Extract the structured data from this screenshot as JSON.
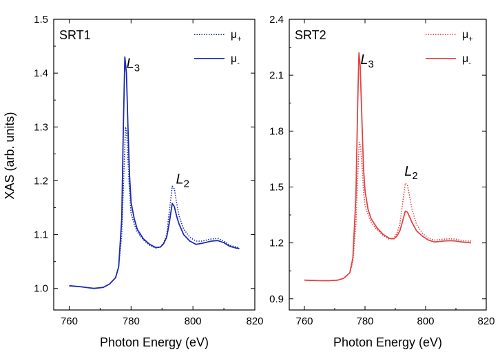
{
  "y_axis_label": "XAS (arb. units)",
  "chart_data": [
    {
      "type": "line",
      "title": "SRT1",
      "xlabel": "Photon Energy (eV)",
      "ylabel": "XAS (arb. units)",
      "xlim": [
        755,
        820
      ],
      "ylim": [
        0.96,
        1.5
      ],
      "x_ticks": [
        "760",
        "780",
        "800",
        "820"
      ],
      "y_ticks": [
        "1.0",
        "1.1",
        "1.2",
        "1.3",
        "1.4",
        "1.5"
      ],
      "x_tick_values": [
        760,
        780,
        800,
        820
      ],
      "y_tick_values": [
        1.0,
        1.1,
        1.2,
        1.3,
        1.4,
        1.5
      ],
      "color": "#1c2bb0",
      "legend": {
        "placement": "top-right",
        "entries": [
          {
            "base": "μ",
            "sub": "+",
            "style": "dotted"
          },
          {
            "base": "μ",
            "sub": "-",
            "style": "solid"
          }
        ]
      },
      "annotations": [
        {
          "base": "L",
          "sub": "3",
          "x": 778.5,
          "y": 1.41
        },
        {
          "base": "L",
          "sub": "2",
          "x": 794.5,
          "y": 1.195
        }
      ],
      "series": [
        {
          "name": "μ+",
          "style": "dotted",
          "points": [
            [
              760,
              1.005
            ],
            [
              764,
              1.003
            ],
            [
              768,
              1.0
            ],
            [
              771,
              1.002
            ],
            [
              773,
              1.008
            ],
            [
              775,
              1.02
            ],
            [
              776,
              1.04
            ],
            [
              777,
              1.1
            ],
            [
              777.6,
              1.2
            ],
            [
              778.2,
              1.3
            ],
            [
              778.6,
              1.29
            ],
            [
              779,
              1.24
            ],
            [
              779.5,
              1.18
            ],
            [
              780,
              1.14
            ],
            [
              781,
              1.12
            ],
            [
              782,
              1.105
            ],
            [
              784,
              1.09
            ],
            [
              786,
              1.08
            ],
            [
              788,
              1.075
            ],
            [
              789.5,
              1.077
            ],
            [
              790.5,
              1.085
            ],
            [
              791.5,
              1.1
            ],
            [
              792.3,
              1.14
            ],
            [
              793.3,
              1.19
            ],
            [
              794,
              1.185
            ],
            [
              794.7,
              1.16
            ],
            [
              795.5,
              1.135
            ],
            [
              797,
              1.11
            ],
            [
              799,
              1.095
            ],
            [
              801,
              1.088
            ],
            [
              803,
              1.088
            ],
            [
              806,
              1.092
            ],
            [
              808,
              1.093
            ],
            [
              810,
              1.088
            ],
            [
              812,
              1.08
            ],
            [
              814,
              1.077
            ],
            [
              815,
              1.076
            ]
          ]
        },
        {
          "name": "μ-",
          "style": "solid",
          "points": [
            [
              760,
              1.005
            ],
            [
              764,
              1.003
            ],
            [
              768,
              1.0
            ],
            [
              771,
              1.002
            ],
            [
              773,
              1.008
            ],
            [
              775,
              1.02
            ],
            [
              776,
              1.04
            ],
            [
              777,
              1.13
            ],
            [
              777.5,
              1.3
            ],
            [
              778,
              1.43
            ],
            [
              778.5,
              1.4
            ],
            [
              779,
              1.3
            ],
            [
              779.5,
              1.21
            ],
            [
              780,
              1.16
            ],
            [
              781,
              1.13
            ],
            [
              782,
              1.11
            ],
            [
              784,
              1.092
            ],
            [
              786,
              1.082
            ],
            [
              788,
              1.076
            ],
            [
              789.5,
              1.077
            ],
            [
              790.5,
              1.083
            ],
            [
              791.5,
              1.095
            ],
            [
              792.3,
              1.12
            ],
            [
              793.3,
              1.158
            ],
            [
              794,
              1.152
            ],
            [
              794.7,
              1.135
            ],
            [
              795.5,
              1.12
            ],
            [
              797,
              1.1
            ],
            [
              799,
              1.088
            ],
            [
              801,
              1.082
            ],
            [
              803,
              1.084
            ],
            [
              806,
              1.088
            ],
            [
              808,
              1.089
            ],
            [
              810,
              1.085
            ],
            [
              812,
              1.078
            ],
            [
              814,
              1.075
            ],
            [
              815,
              1.074
            ]
          ]
        }
      ]
    },
    {
      "type": "line",
      "title": "SRT2",
      "xlabel": "Photon Energy (eV)",
      "ylabel": "",
      "xlim": [
        755,
        820
      ],
      "ylim": [
        0.84,
        2.4
      ],
      "x_ticks": [
        "760",
        "780",
        "800",
        "820"
      ],
      "y_ticks": [
        "0.9",
        "1.2",
        "1.5",
        "1.8",
        "2.1",
        "2.4"
      ],
      "x_tick_values": [
        760,
        780,
        800,
        820
      ],
      "y_tick_values": [
        0.9,
        1.2,
        1.5,
        1.8,
        2.1,
        2.4
      ],
      "color": "#e04545",
      "legend": {
        "placement": "top-right",
        "entries": [
          {
            "base": "μ",
            "sub": "+",
            "style": "dotted"
          },
          {
            "base": "μ",
            "sub": "-",
            "style": "solid"
          }
        ]
      },
      "annotations": [
        {
          "base": "L",
          "sub": "3",
          "x": 778.5,
          "y": 2.16
        },
        {
          "base": "L",
          "sub": "2",
          "x": 793,
          "y": 1.56
        }
      ],
      "series": [
        {
          "name": "μ+",
          "style": "dotted",
          "points": [
            [
              760,
              1.0
            ],
            [
              764,
              0.998
            ],
            [
              768,
              0.997
            ],
            [
              771,
              1.0
            ],
            [
              773,
              1.01
            ],
            [
              775,
              1.04
            ],
            [
              776,
              1.1
            ],
            [
              777,
              1.3
            ],
            [
              777.6,
              1.55
            ],
            [
              778.1,
              1.74
            ],
            [
              778.5,
              1.72
            ],
            [
              779,
              1.62
            ],
            [
              779.5,
              1.48
            ],
            [
              780,
              1.4
            ],
            [
              781,
              1.35
            ],
            [
              782,
              1.31
            ],
            [
              784,
              1.27
            ],
            [
              786,
              1.24
            ],
            [
              788,
              1.22
            ],
            [
              789.5,
              1.225
            ],
            [
              790.5,
              1.25
            ],
            [
              791.5,
              1.3
            ],
            [
              792.3,
              1.4
            ],
            [
              793.3,
              1.52
            ],
            [
              794,
              1.51
            ],
            [
              794.7,
              1.45
            ],
            [
              795.5,
              1.38
            ],
            [
              797,
              1.3
            ],
            [
              799,
              1.25
            ],
            [
              801,
              1.225
            ],
            [
              803,
              1.215
            ],
            [
              806,
              1.22
            ],
            [
              808,
              1.222
            ],
            [
              810,
              1.22
            ],
            [
              812,
              1.212
            ],
            [
              814,
              1.21
            ],
            [
              815,
              1.21
            ]
          ]
        },
        {
          "name": "μ-",
          "style": "solid",
          "points": [
            [
              760,
              1.0
            ],
            [
              764,
              0.998
            ],
            [
              768,
              0.997
            ],
            [
              771,
              1.0
            ],
            [
              773,
              1.01
            ],
            [
              775,
              1.04
            ],
            [
              776,
              1.12
            ],
            [
              777,
              1.45
            ],
            [
              777.6,
              1.95
            ],
            [
              778,
              2.22
            ],
            [
              778.4,
              2.15
            ],
            [
              779,
              1.85
            ],
            [
              779.5,
              1.6
            ],
            [
              780,
              1.48
            ],
            [
              781,
              1.38
            ],
            [
              782,
              1.33
            ],
            [
              784,
              1.28
            ],
            [
              786,
              1.245
            ],
            [
              788,
              1.225
            ],
            [
              789.5,
              1.222
            ],
            [
              790.5,
              1.235
            ],
            [
              791.5,
              1.265
            ],
            [
              792.3,
              1.31
            ],
            [
              793.3,
              1.37
            ],
            [
              794,
              1.365
            ],
            [
              794.7,
              1.34
            ],
            [
              795.5,
              1.31
            ],
            [
              797,
              1.265
            ],
            [
              799,
              1.235
            ],
            [
              801,
              1.215
            ],
            [
              803,
              1.205
            ],
            [
              806,
              1.21
            ],
            [
              808,
              1.212
            ],
            [
              810,
              1.21
            ],
            [
              812,
              1.205
            ],
            [
              814,
              1.202
            ],
            [
              815,
              1.2
            ]
          ]
        }
      ]
    }
  ]
}
